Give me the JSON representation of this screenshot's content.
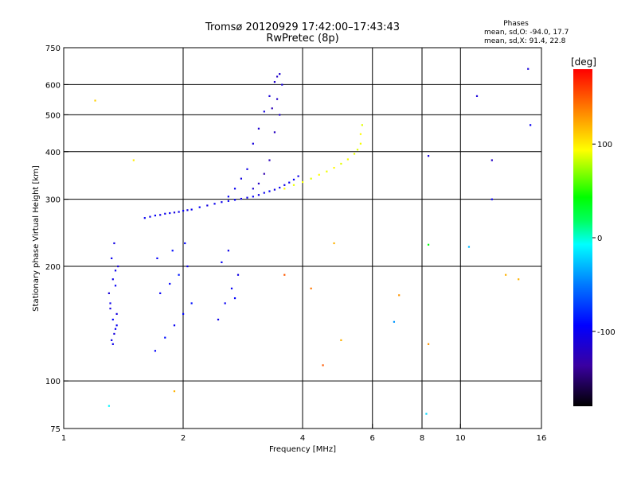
{
  "chart_data": {
    "type": "scatter",
    "title": "Tromsø 20120929 17:42:00–17:43:43",
    "subtitle": "RwPretec (8p)",
    "stats": {
      "heading": "Phases",
      "line_o": "mean, sd,O: -94.0, 17.7",
      "line_x": "mean, sd,X:  91.4, 22.8"
    },
    "xlabel": "Frequency [MHz]",
    "ylabel": "Stationary phase Virtual Height [km]",
    "x_scale": "log2",
    "y_scale": "log",
    "xlim": [
      1,
      16
    ],
    "ylim": [
      75,
      750
    ],
    "x_ticks": [
      1,
      2,
      4,
      6,
      8,
      10,
      16
    ],
    "x_tick_labels": [
      "1",
      "2",
      "4",
      "6",
      "8",
      "10",
      "16"
    ],
    "x_grid": [
      2,
      4,
      6,
      8,
      10
    ],
    "y_ticks": [
      75,
      100,
      200,
      300,
      400,
      500,
      600,
      750
    ],
    "y_tick_labels": [
      "75",
      "100",
      "200",
      "300",
      "400",
      "500",
      "600",
      "750"
    ],
    "y_grid": [
      100,
      200,
      300,
      400,
      500,
      600
    ],
    "grid": true,
    "colorbar": {
      "label": "[deg]",
      "range": [
        -180,
        180
      ],
      "ticks": [
        100,
        0,
        -100
      ],
      "tick_labels": [
        "100",
        "0",
        "-100"
      ]
    },
    "series": [
      {
        "region": "low-E region",
        "x": [
          1.32,
          1.34,
          1.35,
          1.33,
          1.36,
          1.31,
          1.3,
          1.35,
          1.33,
          1.37,
          1.32,
          1.34,
          1.36,
          1.33,
          1.31,
          1.35
        ],
        "y": [
          128,
          133,
          137,
          145,
          150,
          160,
          170,
          178,
          185,
          200,
          210,
          230,
          140,
          125,
          155,
          195
        ],
        "phase": [
          -105,
          -110,
          -100,
          -95,
          -108,
          -102,
          -112,
          -98,
          -104,
          -110,
          -100,
          -106,
          -99,
          -103,
          -108,
          -101
        ]
      },
      {
        "region": "F1 trace",
        "x": [
          1.6,
          1.65,
          1.7,
          1.75,
          1.8,
          1.85,
          1.9,
          1.95,
          2.0,
          2.05,
          2.1,
          2.2,
          2.3,
          2.4,
          2.5,
          2.6,
          2.7,
          2.8,
          2.9,
          3.0,
          3.1,
          3.2,
          3.3,
          3.4,
          3.5,
          3.6,
          3.7,
          3.8,
          3.9
        ],
        "y": [
          268,
          270,
          272,
          273,
          275,
          276,
          277,
          278,
          280,
          281,
          282,
          286,
          289,
          292,
          295,
          297,
          299,
          301,
          303,
          305,
          308,
          312,
          315,
          318,
          322,
          327,
          332,
          338,
          345
        ],
        "phase": [
          -100,
          -104,
          -98,
          -106,
          -102,
          -97,
          -110,
          -103,
          -99,
          -105,
          -101,
          -96,
          -108,
          -102,
          -104,
          -100,
          -98,
          -107,
          -103,
          -99,
          -105,
          -101,
          -97,
          -106,
          -100,
          -104,
          -102,
          -98,
          -103
        ]
      },
      {
        "region": "F2 O-mode trace",
        "x": [
          3.0,
          3.1,
          3.2,
          3.3,
          3.4,
          3.45,
          3.5,
          3.55,
          3.3,
          3.2,
          3.1,
          3.0,
          2.9,
          2.8,
          2.7,
          2.6,
          3.4,
          3.5,
          3.45,
          3.35
        ],
        "y": [
          420,
          460,
          510,
          560,
          610,
          630,
          640,
          600,
          380,
          350,
          330,
          320,
          360,
          340,
          320,
          305,
          450,
          500,
          550,
          520
        ],
        "phase": [
          -110,
          -115,
          -108,
          -112,
          -118,
          -120,
          -114,
          -110,
          -125,
          -130,
          -120,
          -115,
          -105,
          -108,
          -100,
          -98,
          -122,
          -116,
          -119,
          -126
        ]
      },
      {
        "region": "F2 X-mode trace",
        "x": [
          3.6,
          3.8,
          4.0,
          4.2,
          4.4,
          4.6,
          4.8,
          5.0,
          5.2,
          5.4,
          5.5,
          5.6,
          5.6,
          5.65
        ],
        "y": [
          320,
          327,
          333,
          340,
          348,
          355,
          363,
          372,
          382,
          395,
          405,
          420,
          445,
          470
        ],
        "phase": [
          95,
          90,
          92,
          88,
          94,
          91,
          96,
          89,
          93,
          90,
          87,
          92,
          95,
          88
        ]
      },
      {
        "region": "lower blobs",
        "x": [
          1.7,
          1.8,
          1.9,
          2.0,
          2.1,
          1.75,
          1.85,
          1.95,
          2.05,
          1.72,
          1.88,
          2.02,
          2.45,
          2.55,
          2.65,
          2.75,
          2.5,
          2.6,
          2.7
        ],
        "y": [
          120,
          130,
          140,
          150,
          160,
          170,
          180,
          190,
          200,
          210,
          220,
          230,
          145,
          160,
          175,
          190,
          205,
          220,
          165
        ],
        "phase": [
          -95,
          -90,
          -100,
          -92,
          -88,
          -98,
          -94,
          -86,
          -102,
          -96,
          -90,
          -93,
          -104,
          -100,
          -97,
          -106,
          -99,
          -103,
          -95
        ]
      },
      {
        "region": "scattered",
        "x": [
          1.2,
          1.5,
          1.3,
          1.9,
          4.5,
          5.0,
          8.3,
          8.3,
          10.5,
          12.0,
          12.0,
          14.0,
          14.8,
          15.0,
          3.6,
          4.2,
          4.8,
          7.0,
          6.8,
          11.0,
          13.0,
          8.2,
          8.3
        ],
        "y": [
          545,
          380,
          86,
          94,
          110,
          128,
          390,
          228,
          225,
          380,
          300,
          185,
          660,
          470,
          190,
          175,
          230,
          168,
          143,
          560,
          190,
          82,
          125
        ],
        "phase": [
          110,
          100,
          -10,
          120,
          150,
          120,
          -110,
          40,
          -30,
          -120,
          -100,
          120,
          -110,
          -100,
          150,
          140,
          120,
          130,
          -40,
          -110,
          120,
          -20,
          130
        ]
      }
    ]
  }
}
